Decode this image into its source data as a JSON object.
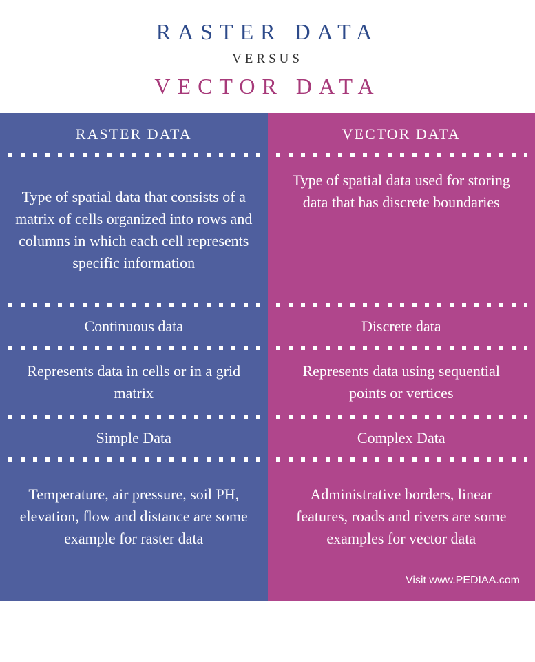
{
  "header": {
    "title1": "RASTER DATA",
    "title1_color": "#2d4a8a",
    "versus": "VERSUS",
    "title2": "VECTOR DATA",
    "title2_color": "#a73a7a"
  },
  "columns": {
    "left": {
      "bg": "#4f5f9e",
      "header": "RASTER DATA",
      "definition": "Type of spatial data that consists of a matrix of cells organized into rows and columns in which each cell represents specific information",
      "data_type": "Continuous data",
      "representation": "Represents data in cells or in a grid matrix",
      "complexity": "Simple Data",
      "examples": "Temperature, air pressure, soil PH, elevation, flow and distance are some example for raster data"
    },
    "right": {
      "bg": "#b0468c",
      "header": "VECTOR DATA",
      "definition": "Type of spatial data used for storing data that has discrete boundaries",
      "data_type": "Discrete data",
      "representation": "Represents data using sequential points or vertices",
      "complexity": "Complex Data",
      "examples": "Administrative borders, linear features, roads and rivers are some examples for vector data"
    },
    "divider": {
      "dot_color": "#ffffff",
      "dot_size": 6,
      "gap": 12
    }
  },
  "attribution": "Visit www.PEDIAA.com"
}
